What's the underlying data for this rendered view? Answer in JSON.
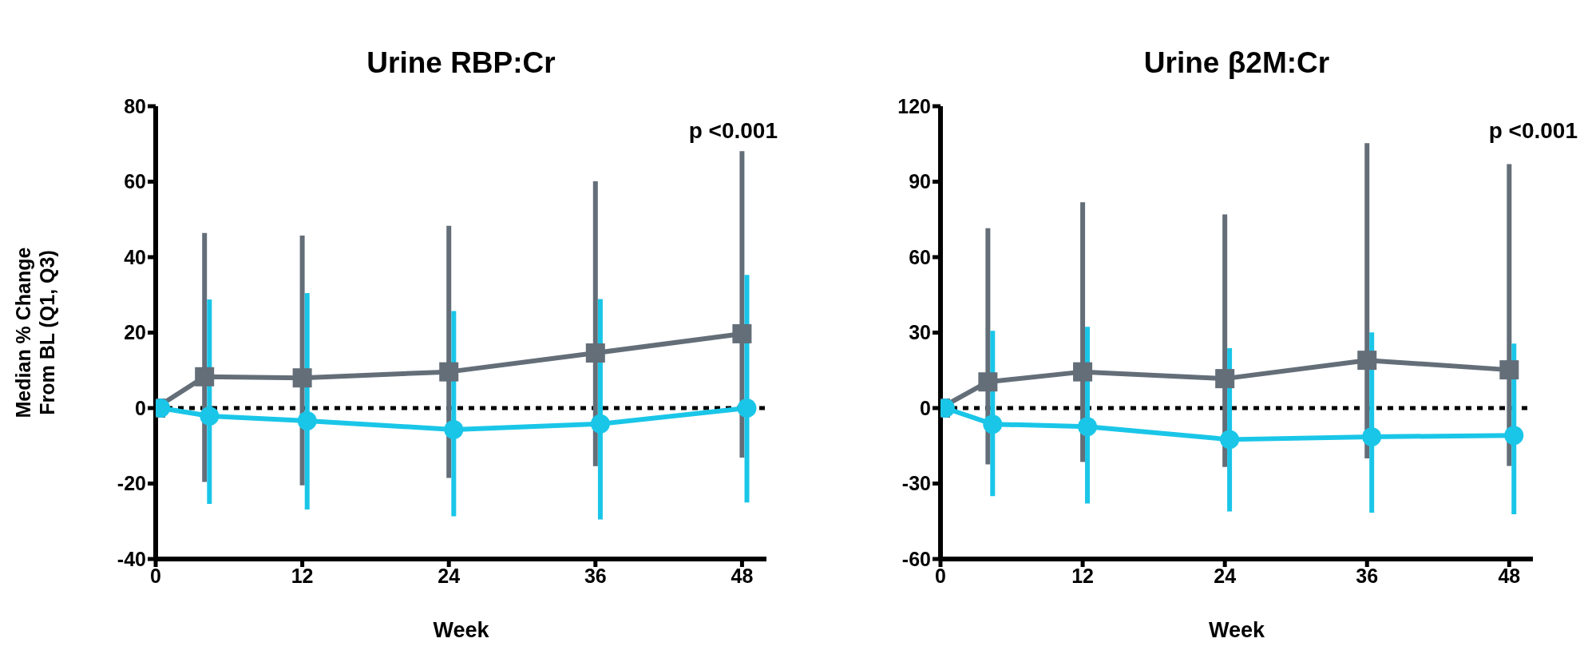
{
  "chart_data": [
    {
      "type": "line",
      "title": "Urine RBP:Cr",
      "xlabel": "Week",
      "ylabel": "Median % Change\nFrom BL (Q1, Q3)",
      "xlim": [
        0,
        50
      ],
      "xticks": [
        0,
        12,
        24,
        36,
        48
      ],
      "ylim": [
        -40,
        80
      ],
      "yticks": [
        -40,
        -20,
        0,
        20,
        40,
        60,
        80
      ],
      "annotations": [
        "p <0.001"
      ],
      "ref_lines": [
        {
          "axis": "y",
          "value": 0,
          "color": "#000000",
          "line_style": "dotted"
        }
      ],
      "series": [
        {
          "color": "#646e78",
          "marker": "square",
          "x": [
            0,
            4,
            12,
            24,
            36,
            48
          ],
          "values": [
            0,
            8.3,
            8.0,
            9.6,
            14.6,
            19.7
          ],
          "errors": [
            null,
            [
              -19.6,
              46.4
            ],
            [
              -20.5,
              45.7
            ],
            [
              -18.5,
              48.3
            ],
            [
              -15.4,
              60.1
            ],
            [
              -13.1,
              68.1
            ]
          ]
        },
        {
          "color": "#1ac6e8",
          "marker": "circle",
          "x": [
            0.4,
            4.4,
            12.4,
            24.4,
            36.4,
            48.4
          ],
          "values": [
            0,
            -2.1,
            -3.4,
            -5.7,
            -4.2,
            0
          ],
          "errors": [
            null,
            [
              -25.4,
              28.8
            ],
            [
              -26.9,
              30.5
            ],
            [
              -28.7,
              25.7
            ],
            [
              -29.5,
              28.9
            ],
            [
              -25,
              35.3
            ]
          ]
        }
      ]
    },
    {
      "type": "line",
      "title": "Urine β2M:Cr",
      "xlabel": "Week",
      "xlim": [
        0,
        50
      ],
      "xticks": [
        0,
        12,
        24,
        36,
        48
      ],
      "ylim": [
        -60,
        120
      ],
      "yticks": [
        -60,
        -30,
        0,
        30,
        60,
        90,
        120
      ],
      "annotations": [
        "p <0.001"
      ],
      "ref_lines": [
        {
          "axis": "y",
          "value": 0,
          "color": "#000000",
          "line_style": "dotted"
        }
      ],
      "series": [
        {
          "color": "#646e78",
          "marker": "square",
          "x": [
            0,
            4,
            12,
            24,
            36,
            48
          ],
          "values": [
            0,
            10.4,
            14.4,
            11.7,
            19.0,
            15.2
          ],
          "errors": [
            null,
            [
              -22.4,
              71.5
            ],
            [
              -21.4,
              81.8
            ],
            [
              -23.4,
              77.0
            ],
            [
              -20,
              105.3
            ],
            [
              -23,
              97
            ]
          ]
        },
        {
          "color": "#1ac6e8",
          "marker": "circle",
          "x": [
            0.4,
            4.4,
            12.4,
            24.4,
            36.4,
            48.4
          ],
          "values": [
            0,
            -6.4,
            -7.4,
            -12.5,
            -11.4,
            -10.9
          ],
          "errors": [
            null,
            [
              -35,
              30.7
            ],
            [
              -37.9,
              32.3
            ],
            [
              -41.1,
              23.8
            ],
            [
              -41.6,
              30.1
            ],
            [
              -42.2,
              25.6
            ]
          ]
        }
      ]
    }
  ]
}
